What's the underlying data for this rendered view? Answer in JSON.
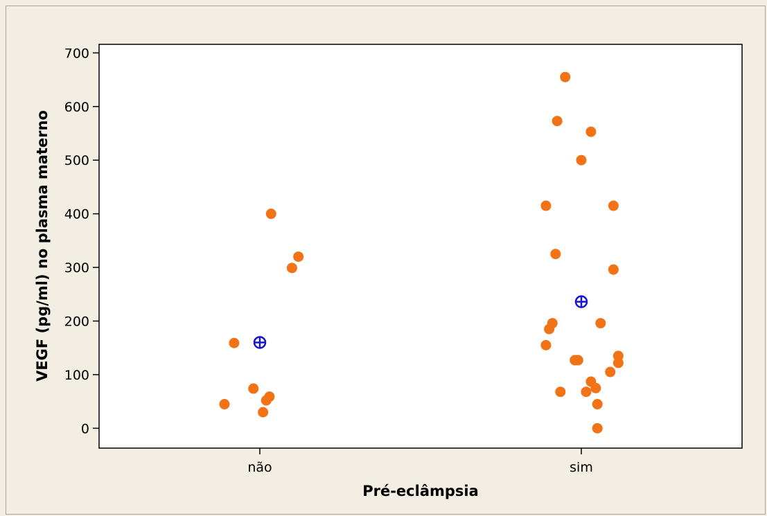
{
  "chart_data": {
    "type": "scatter",
    "xlabel": "Pré-eclâmpsia",
    "ylabel": "VEGF (pg/ml) no plasma materno",
    "categories": [
      "não",
      "sim"
    ],
    "ylim": [
      -37,
      716
    ],
    "yticks": [
      0,
      100,
      200,
      300,
      400,
      500,
      600,
      700
    ],
    "grid": false,
    "point_color": "#f27315",
    "mean_color": "#1414d2",
    "background": "#ffffff",
    "outer_background": "#f2eee3",
    "points": [
      {
        "category": "não",
        "jitter": -0.11,
        "y": 45
      },
      {
        "category": "não",
        "jitter": -0.08,
        "y": 159
      },
      {
        "category": "não",
        "jitter": -0.02,
        "y": 74
      },
      {
        "category": "não",
        "jitter": 0.01,
        "y": 30
      },
      {
        "category": "não",
        "jitter": 0.02,
        "y": 52
      },
      {
        "category": "não",
        "jitter": 0.03,
        "y": 59
      },
      {
        "category": "não",
        "jitter": 0.035,
        "y": 400
      },
      {
        "category": "não",
        "jitter": 0.1,
        "y": 299
      },
      {
        "category": "não",
        "jitter": 0.12,
        "y": 320
      },
      {
        "category": "sim",
        "jitter": -0.11,
        "y": 415
      },
      {
        "category": "sim",
        "jitter": -0.11,
        "y": 155
      },
      {
        "category": "sim",
        "jitter": -0.1,
        "y": 185
      },
      {
        "category": "sim",
        "jitter": -0.09,
        "y": 196
      },
      {
        "category": "sim",
        "jitter": -0.08,
        "y": 325
      },
      {
        "category": "sim",
        "jitter": -0.075,
        "y": 573
      },
      {
        "category": "sim",
        "jitter": -0.065,
        "y": 68
      },
      {
        "category": "sim",
        "jitter": -0.05,
        "y": 655
      },
      {
        "category": "sim",
        "jitter": -0.02,
        "y": 127
      },
      {
        "category": "sim",
        "jitter": -0.01,
        "y": 127
      },
      {
        "category": "sim",
        "jitter": 0.0,
        "y": 500
      },
      {
        "category": "sim",
        "jitter": 0.015,
        "y": 68
      },
      {
        "category": "sim",
        "jitter": 0.03,
        "y": 87
      },
      {
        "category": "sim",
        "jitter": 0.03,
        "y": 553
      },
      {
        "category": "sim",
        "jitter": 0.045,
        "y": 75
      },
      {
        "category": "sim",
        "jitter": 0.05,
        "y": 45
      },
      {
        "category": "sim",
        "jitter": 0.05,
        "y": 0
      },
      {
        "category": "sim",
        "jitter": 0.06,
        "y": 196
      },
      {
        "category": "sim",
        "jitter": 0.09,
        "y": 105
      },
      {
        "category": "sim",
        "jitter": 0.1,
        "y": 415
      },
      {
        "category": "sim",
        "jitter": 0.1,
        "y": 296
      },
      {
        "category": "sim",
        "jitter": 0.115,
        "y": 135
      },
      {
        "category": "sim",
        "jitter": 0.115,
        "y": 122
      }
    ],
    "means": [
      {
        "category": "não",
        "y": 160
      },
      {
        "category": "sim",
        "y": 236
      }
    ]
  }
}
